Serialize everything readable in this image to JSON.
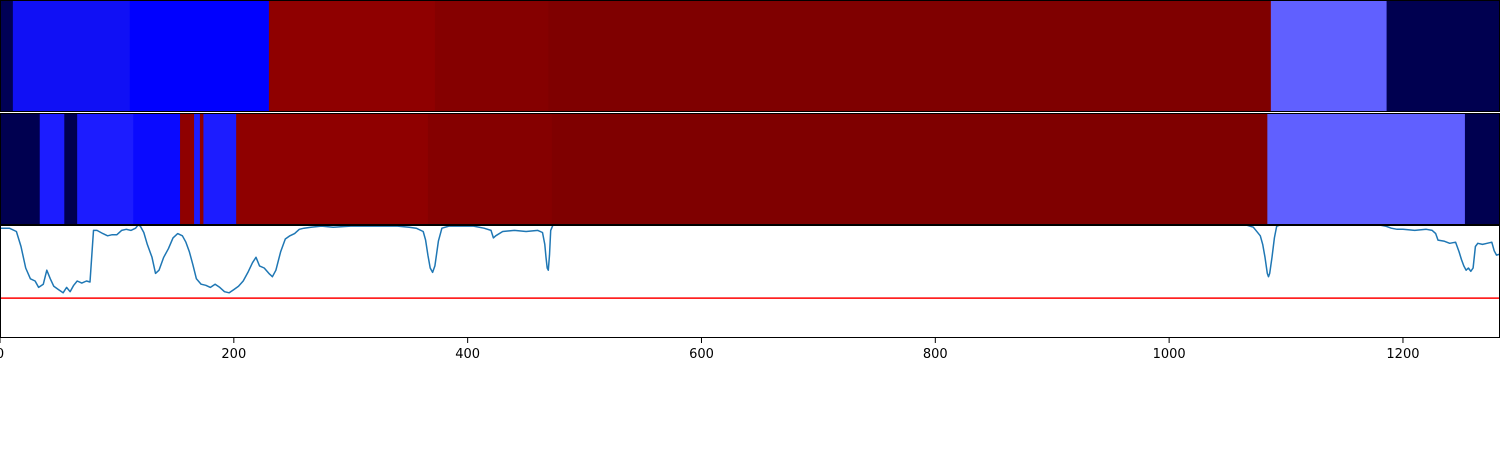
{
  "chart_data": [
    {
      "type": "heatmap",
      "segments": [
        {
          "start": 0,
          "end": 11,
          "color": "#000055"
        },
        {
          "start": 11,
          "end": 111,
          "color": "#1010F5"
        },
        {
          "start": 111,
          "end": 230,
          "color": "#0000FF"
        },
        {
          "start": 230,
          "end": 372,
          "color": "#8F0000"
        },
        {
          "start": 372,
          "end": 469,
          "color": "#850000"
        },
        {
          "start": 469,
          "end": 1087,
          "color": "#7F0000"
        },
        {
          "start": 1087,
          "end": 1186,
          "color": "#6060FF"
        },
        {
          "start": 1186,
          "end": 1283,
          "color": "#000050"
        }
      ]
    },
    {
      "type": "heatmap",
      "segments": [
        {
          "start": 0,
          "end": 34,
          "color": "#000050"
        },
        {
          "start": 34,
          "end": 55,
          "color": "#1C1CFF"
        },
        {
          "start": 55,
          "end": 66,
          "color": "#000050"
        },
        {
          "start": 66,
          "end": 114,
          "color": "#1C1CFF"
        },
        {
          "start": 114,
          "end": 154,
          "color": "#0A0AFF"
        },
        {
          "start": 154,
          "end": 166,
          "color": "#8F0000"
        },
        {
          "start": 166,
          "end": 171,
          "color": "#1C1CFF"
        },
        {
          "start": 171,
          "end": 174,
          "color": "#8F0000"
        },
        {
          "start": 174,
          "end": 202,
          "color": "#1C1CFF"
        },
        {
          "start": 202,
          "end": 366,
          "color": "#8F0000"
        },
        {
          "start": 366,
          "end": 472,
          "color": "#850000"
        },
        {
          "start": 472,
          "end": 1084,
          "color": "#7F0000"
        },
        {
          "start": 1084,
          "end": 1253,
          "color": "#6060FF"
        },
        {
          "start": 1253,
          "end": 1283,
          "color": "#000050"
        }
      ]
    },
    {
      "type": "line",
      "xlim": [
        0,
        1283
      ],
      "ylim": [
        -0.05,
        1.0
      ],
      "grid": false,
      "x_ticks": [
        "0",
        "200",
        "400",
        "600",
        "800",
        "1000",
        "1200"
      ],
      "series": [
        {
          "color": "#1f77b4",
          "points": [
            [
              0,
              0.97
            ],
            [
              8,
              0.97
            ],
            [
              14,
              0.94
            ],
            [
              18,
              0.8
            ],
            [
              22,
              0.6
            ],
            [
              26,
              0.5
            ],
            [
              30,
              0.48
            ],
            [
              33,
              0.42
            ],
            [
              37,
              0.45
            ],
            [
              40,
              0.58
            ],
            [
              43,
              0.5
            ],
            [
              46,
              0.43
            ],
            [
              50,
              0.4
            ],
            [
              54,
              0.37
            ],
            [
              57,
              0.42
            ],
            [
              60,
              0.38
            ],
            [
              63,
              0.44
            ],
            [
              66,
              0.48
            ],
            [
              70,
              0.46
            ],
            [
              74,
              0.48
            ],
            [
              77,
              0.47
            ],
            [
              80,
              0.95
            ],
            [
              83,
              0.95
            ],
            [
              88,
              0.92
            ],
            [
              92,
              0.9
            ],
            [
              96,
              0.91
            ],
            [
              100,
              0.91
            ],
            [
              104,
              0.95
            ],
            [
              108,
              0.96
            ],
            [
              112,
              0.95
            ],
            [
              116,
              0.97
            ],
            [
              118,
              1.0
            ],
            [
              120,
              0.99
            ],
            [
              123,
              0.93
            ],
            [
              126,
              0.82
            ],
            [
              130,
              0.7
            ],
            [
              133,
              0.55
            ],
            [
              136,
              0.58
            ],
            [
              140,
              0.7
            ],
            [
              144,
              0.78
            ],
            [
              148,
              0.88
            ],
            [
              152,
              0.92
            ],
            [
              156,
              0.9
            ],
            [
              159,
              0.84
            ],
            [
              162,
              0.75
            ],
            [
              165,
              0.63
            ],
            [
              168,
              0.5
            ],
            [
              172,
              0.45
            ],
            [
              176,
              0.44
            ],
            [
              180,
              0.42
            ],
            [
              184,
              0.45
            ],
            [
              188,
              0.42
            ],
            [
              192,
              0.38
            ],
            [
              196,
              0.37
            ],
            [
              200,
              0.4
            ],
            [
              204,
              0.43
            ],
            [
              208,
              0.48
            ],
            [
              212,
              0.56
            ],
            [
              216,
              0.65
            ],
            [
              219,
              0.7
            ],
            [
              222,
              0.62
            ],
            [
              226,
              0.6
            ],
            [
              230,
              0.55
            ],
            [
              233,
              0.52
            ],
            [
              236,
              0.58
            ],
            [
              240,
              0.75
            ],
            [
              244,
              0.87
            ],
            [
              248,
              0.9
            ],
            [
              252,
              0.92
            ],
            [
              256,
              0.96
            ],
            [
              260,
              0.97
            ],
            [
              266,
              0.98
            ],
            [
              275,
              0.99
            ],
            [
              285,
              0.98
            ],
            [
              300,
              0.99
            ],
            [
              320,
              0.99
            ],
            [
              340,
              0.99
            ],
            [
              350,
              0.98
            ],
            [
              356,
              0.97
            ],
            [
              362,
              0.94
            ],
            [
              364,
              0.86
            ],
            [
              366,
              0.72
            ],
            [
              368,
              0.6
            ],
            [
              370,
              0.56
            ],
            [
              372,
              0.62
            ],
            [
              375,
              0.85
            ],
            [
              378,
              0.97
            ],
            [
              384,
              0.99
            ],
            [
              395,
              0.99
            ],
            [
              405,
              0.99
            ],
            [
              414,
              0.97
            ],
            [
              420,
              0.95
            ],
            [
              422,
              0.88
            ],
            [
              424,
              0.9
            ],
            [
              430,
              0.94
            ],
            [
              440,
              0.95
            ],
            [
              450,
              0.94
            ],
            [
              460,
              0.95
            ],
            [
              464,
              0.93
            ],
            [
              466,
              0.82
            ],
            [
              467,
              0.7
            ],
            [
              468,
              0.6
            ],
            [
              469,
              0.58
            ],
            [
              470,
              0.72
            ],
            [
              471,
              0.95
            ],
            [
              473,
              1.0
            ],
            [
              478,
              1.02
            ],
            [
              600,
              1.02
            ],
            [
              800,
              1.02
            ],
            [
              1060,
              1.02
            ],
            [
              1066,
              1.0
            ],
            [
              1072,
              0.98
            ],
            [
              1078,
              0.9
            ],
            [
              1080,
              0.82
            ],
            [
              1082,
              0.7
            ],
            [
              1084,
              0.55
            ],
            [
              1085,
              0.52
            ],
            [
              1086,
              0.55
            ],
            [
              1088,
              0.7
            ],
            [
              1090,
              0.88
            ],
            [
              1092,
              0.99
            ],
            [
              1095,
              1.0
            ],
            [
              1150,
              1.0
            ],
            [
              1180,
              1.0
            ],
            [
              1185,
              0.99
            ],
            [
              1190,
              0.97
            ],
            [
              1195,
              0.96
            ],
            [
              1200,
              0.96
            ],
            [
              1210,
              0.95
            ],
            [
              1220,
              0.96
            ],
            [
              1225,
              0.95
            ],
            [
              1228,
              0.92
            ],
            [
              1230,
              0.86
            ],
            [
              1235,
              0.85
            ],
            [
              1240,
              0.83
            ],
            [
              1245,
              0.84
            ],
            [
              1248,
              0.75
            ],
            [
              1250,
              0.68
            ],
            [
              1252,
              0.62
            ],
            [
              1254,
              0.58
            ],
            [
              1256,
              0.6
            ],
            [
              1258,
              0.57
            ],
            [
              1260,
              0.6
            ],
            [
              1262,
              0.8
            ],
            [
              1264,
              0.83
            ],
            [
              1268,
              0.82
            ],
            [
              1272,
              0.83
            ],
            [
              1276,
              0.84
            ],
            [
              1278,
              0.76
            ],
            [
              1280,
              0.72
            ],
            [
              1283,
              0.73
            ]
          ]
        }
      ],
      "hlines": [
        {
          "y": 0.32,
          "color": "#ff0000"
        }
      ]
    }
  ]
}
